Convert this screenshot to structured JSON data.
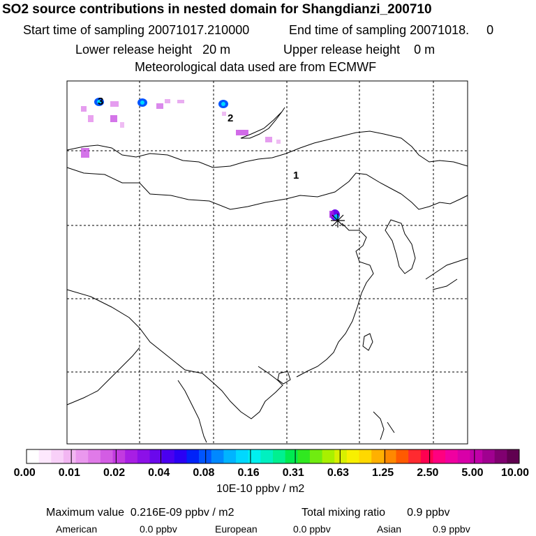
{
  "header": {
    "title": "SO2 source contributions in nested domain for Shangdianzi_200710",
    "start_label": "Start time of sampling 20071017.210000",
    "end_label": "End time of sampling 20071018.     0",
    "lower_label": "Lower release height   20 m",
    "upper_label": "Upper release height    0 m",
    "met_label": "Meteorological data used are from ECMWF"
  },
  "map": {
    "region_labels": [
      "1",
      "2",
      "3"
    ]
  },
  "colorbar": {
    "tick_labels": [
      "0.00",
      "0.01",
      "0.02",
      "0.04",
      "0.08",
      "0.16",
      "0.31",
      "0.63",
      "1.25",
      "2.50",
      "5.00",
      "10.00"
    ],
    "units": "10E-10 ppbv / m2",
    "colors": [
      "#ffffff",
      "#fde8fd",
      "#f8d0f8",
      "#f2b6f2",
      "#ea98ee",
      "#e07ae8",
      "#d35ce4",
      "#c23ae0",
      "#a81ee4",
      "#8c10e8",
      "#6a08ec",
      "#4a00f0",
      "#2a00f4",
      "#0022f8",
      "#0055ff",
      "#0088ff",
      "#00b4ff",
      "#00d8ff",
      "#00f0f0",
      "#00f0c0",
      "#00f090",
      "#00ea50",
      "#30e820",
      "#70ec10",
      "#a8f000",
      "#d8f000",
      "#f8f000",
      "#ffd800",
      "#ffb000",
      "#ff8800",
      "#ff5a00",
      "#ff2a30",
      "#ff0050",
      "#ff0080",
      "#f000a0",
      "#d800a8",
      "#c000a8",
      "#a00090",
      "#800070",
      "#600050"
    ]
  },
  "summary": {
    "max_line": "Maximum value  0.216E-09 ppbv / m2",
    "total_line": "Total mixing ratio       0.9 ppbv",
    "sources": [
      {
        "label": "American",
        "value": "0.0 ppbv"
      },
      {
        "label": "European",
        "value": "0.0 ppbv"
      },
      {
        "label": "Asian",
        "value": "0.9 ppbv"
      }
    ]
  }
}
